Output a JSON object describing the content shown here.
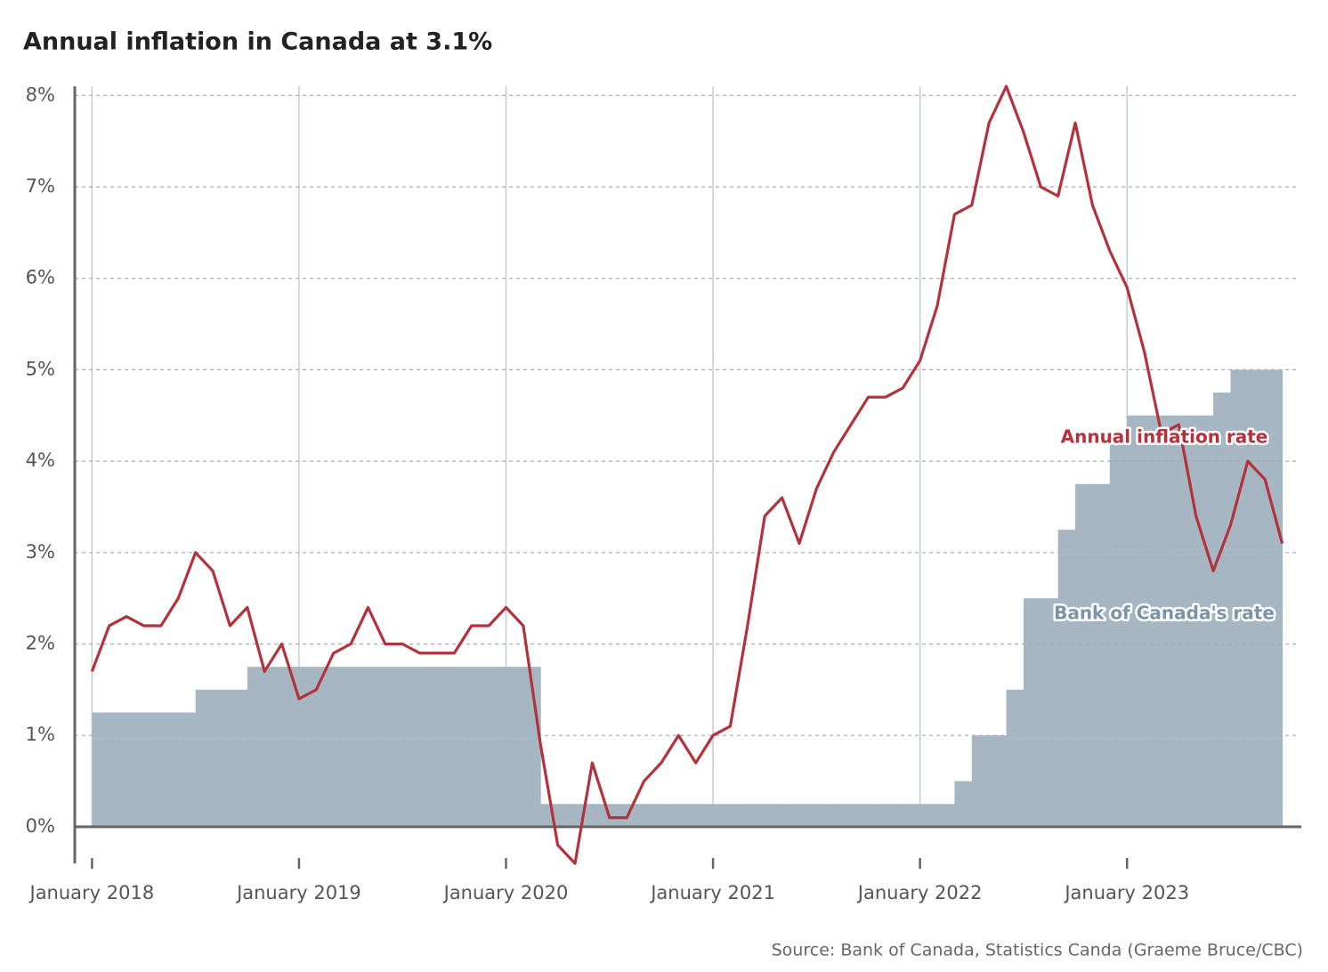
{
  "chart_data": {
    "type": "line",
    "title": "Annual inflation in Canada at 3.1%",
    "source": "Source: Bank of Canada, Statistics Canda (Graeme Bruce/CBC)",
    "x": [
      "2018-01",
      "2018-02",
      "2018-03",
      "2018-04",
      "2018-05",
      "2018-06",
      "2018-07",
      "2018-08",
      "2018-09",
      "2018-10",
      "2018-11",
      "2018-12",
      "2019-01",
      "2019-02",
      "2019-03",
      "2019-04",
      "2019-05",
      "2019-06",
      "2019-07",
      "2019-08",
      "2019-09",
      "2019-10",
      "2019-11",
      "2019-12",
      "2020-01",
      "2020-02",
      "2020-03",
      "2020-04",
      "2020-05",
      "2020-06",
      "2020-07",
      "2020-08",
      "2020-09",
      "2020-10",
      "2020-11",
      "2020-12",
      "2021-01",
      "2021-02",
      "2021-03",
      "2021-04",
      "2021-05",
      "2021-06",
      "2021-07",
      "2021-08",
      "2021-09",
      "2021-10",
      "2021-11",
      "2021-12",
      "2022-01",
      "2022-02",
      "2022-03",
      "2022-04",
      "2022-05",
      "2022-06",
      "2022-07",
      "2022-08",
      "2022-09",
      "2022-10",
      "2022-11",
      "2022-12",
      "2023-01",
      "2023-02",
      "2023-03",
      "2023-04",
      "2023-05",
      "2023-06",
      "2023-07",
      "2023-08",
      "2023-09",
      "2023-10"
    ],
    "series": [
      {
        "name": "Annual inflation rate",
        "color": "#b3323b",
        "style": "line",
        "values": [
          1.7,
          2.2,
          2.3,
          2.2,
          2.2,
          2.5,
          3.0,
          2.8,
          2.2,
          2.4,
          1.7,
          2.0,
          1.4,
          1.5,
          1.9,
          2.0,
          2.4,
          2.0,
          2.0,
          1.9,
          1.9,
          1.9,
          2.2,
          2.2,
          2.4,
          2.2,
          0.9,
          -0.2,
          -0.4,
          0.7,
          0.1,
          0.1,
          0.5,
          0.7,
          1.0,
          0.7,
          1.0,
          1.1,
          2.2,
          3.4,
          3.6,
          3.1,
          3.7,
          4.1,
          4.4,
          4.7,
          4.7,
          4.8,
          5.1,
          5.7,
          6.7,
          6.8,
          7.7,
          8.1,
          7.6,
          7.0,
          6.9,
          7.7,
          6.8,
          6.3,
          5.9,
          5.2,
          4.3,
          4.4,
          3.4,
          2.8,
          3.3,
          4.0,
          3.8,
          3.1
        ]
      },
      {
        "name": "Bank of Canada's rate",
        "color": "#a6b6c3",
        "style": "step-area",
        "values": [
          1.25,
          1.25,
          1.25,
          1.25,
          1.25,
          1.25,
          1.5,
          1.5,
          1.5,
          1.75,
          1.75,
          1.75,
          1.75,
          1.75,
          1.75,
          1.75,
          1.75,
          1.75,
          1.75,
          1.75,
          1.75,
          1.75,
          1.75,
          1.75,
          1.75,
          1.75,
          0.25,
          0.25,
          0.25,
          0.25,
          0.25,
          0.25,
          0.25,
          0.25,
          0.25,
          0.25,
          0.25,
          0.25,
          0.25,
          0.25,
          0.25,
          0.25,
          0.25,
          0.25,
          0.25,
          0.25,
          0.25,
          0.25,
          0.25,
          0.25,
          0.5,
          1.0,
          1.0,
          1.5,
          2.5,
          2.5,
          3.25,
          3.75,
          3.75,
          4.25,
          4.5,
          4.5,
          4.5,
          4.5,
          4.5,
          4.75,
          5.0,
          5.0,
          5.0,
          5.0
        ]
      }
    ],
    "xlim": [
      "2017-12",
      "2023-11"
    ],
    "xticks": [
      {
        "value": "2018-01",
        "label": "January 2018"
      },
      {
        "value": "2019-01",
        "label": "January 2019"
      },
      {
        "value": "2020-01",
        "label": "January 2020"
      },
      {
        "value": "2021-01",
        "label": "January 2021"
      },
      {
        "value": "2022-01",
        "label": "January 2022"
      },
      {
        "value": "2023-01",
        "label": "January 2023"
      }
    ],
    "ylim": [
      -0.4,
      8.1
    ],
    "yticks": [
      {
        "value": 0,
        "label": "0%"
      },
      {
        "value": 1,
        "label": "1%"
      },
      {
        "value": 2,
        "label": "2%"
      },
      {
        "value": 3,
        "label": "3%"
      },
      {
        "value": 4,
        "label": "4%"
      },
      {
        "value": 5,
        "label": "5%"
      },
      {
        "value": 6,
        "label": "6%"
      },
      {
        "value": 7,
        "label": "7%"
      },
      {
        "value": 8,
        "label": "8%"
      }
    ],
    "grid": true
  }
}
